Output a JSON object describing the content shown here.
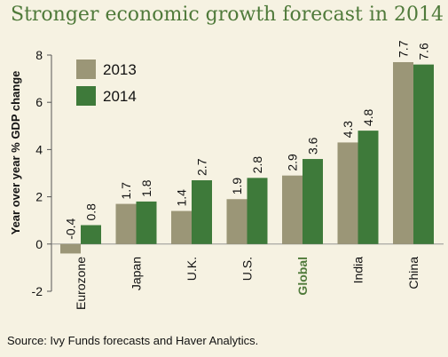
{
  "title": "Stronger economic growth forecast in 2014",
  "source": "Source: Ivy Funds forecasts and Haver Analytics.",
  "chart_data": {
    "type": "bar",
    "ylabel": "Year over year % GDP change",
    "ylim": [
      -2,
      8
    ],
    "yticks": [
      "-2",
      "0",
      "2",
      "4",
      "6",
      "8"
    ],
    "categories": [
      "Eurozone",
      "Japan",
      "U.K.",
      "U.S.",
      "Global",
      "India",
      "China"
    ],
    "highlight_category": "Global",
    "series": [
      {
        "name": "2013",
        "color": "#9b9677",
        "values": [
          -0.4,
          1.7,
          1.4,
          1.9,
          2.9,
          4.3,
          7.7
        ],
        "labels": [
          "-0.4",
          "1.7",
          "1.4",
          "1.9",
          "2.9",
          "4.3",
          "7.7"
        ]
      },
      {
        "name": "2014",
        "color": "#3e7a3a",
        "values": [
          0.8,
          1.8,
          2.7,
          2.8,
          3.6,
          4.8,
          7.6
        ],
        "labels": [
          "0.8",
          "1.8",
          "2.7",
          "2.8",
          "3.6",
          "4.8",
          "7.6"
        ]
      }
    ],
    "grid": false,
    "legend": "top-left"
  },
  "colors": {
    "title": "#4f7a3a",
    "highlight": "#4f7a3a",
    "background": "#f6f2e2"
  }
}
